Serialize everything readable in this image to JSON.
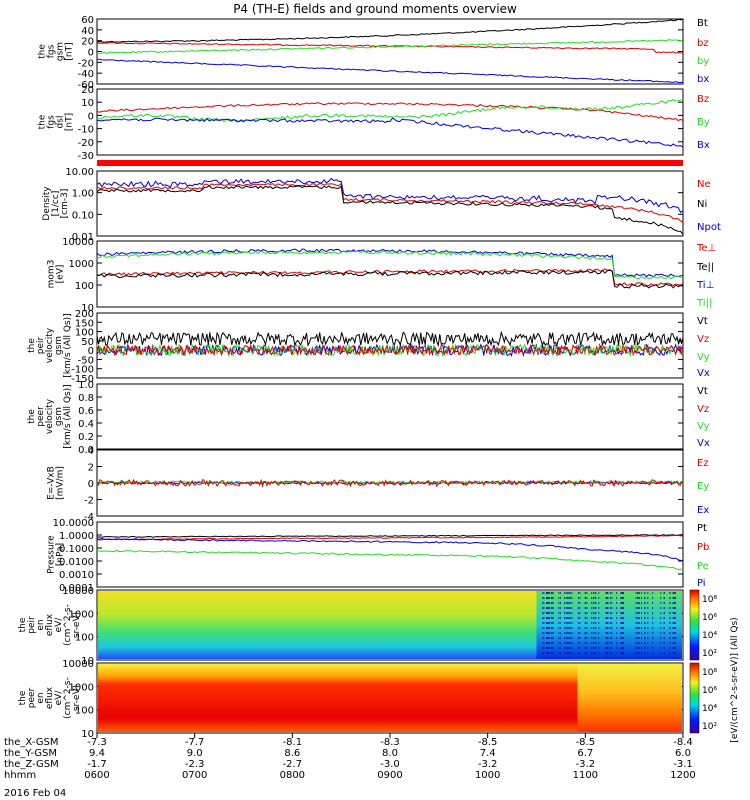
{
  "title": "P4 (TH-E) fields and ground moments overview",
  "date": "2016 Feb 04",
  "colors": {
    "black": "#000000",
    "red": "#e00000",
    "green": "#22dd22",
    "blue": "#0000dd",
    "bar": "#ff0000"
  },
  "panels": [
    {
      "id": "fgs-gsm",
      "ylabel": [
        "the",
        "fgs",
        "gsm",
        "[nT]"
      ],
      "ticks": [
        "60",
        "40",
        "20",
        "0",
        "-20",
        "-40",
        "-60"
      ],
      "legend": [
        {
          "label": "Bt",
          "color": "black"
        },
        {
          "label": "bz",
          "color": "red"
        },
        {
          "label": "by",
          "color": "green"
        },
        {
          "label": "bx",
          "color": "blue"
        }
      ]
    },
    {
      "id": "fgs-dsl",
      "ylabel": [
        "the",
        "fgs",
        "dsl",
        "[nT]"
      ],
      "ticks": [
        "20",
        "10",
        "0",
        "-10",
        "-20",
        "-30"
      ],
      "legend": [
        {
          "label": "Bz",
          "color": "red"
        },
        {
          "label": "By",
          "color": "green"
        },
        {
          "label": "Bx",
          "color": "blue"
        }
      ]
    },
    {
      "id": "density",
      "ylabel": [
        "Density",
        "[1/cc]",
        "[cm-3]"
      ],
      "ticks": [
        "10.00",
        "1.00",
        "0.10",
        "0.01"
      ],
      "legend": [
        {
          "label": "Ne",
          "color": "red"
        },
        {
          "label": "Ni",
          "color": "black"
        },
        {
          "label": "Npot",
          "color": "blue"
        }
      ]
    },
    {
      "id": "temp",
      "ylabel": [
        "mom3",
        "[eV]"
      ],
      "ticks": [
        "10000",
        "1000",
        "100",
        "10"
      ],
      "legend": [
        {
          "label": "Te⊥",
          "color": "red"
        },
        {
          "label": "Te||",
          "color": "black"
        },
        {
          "label": "Ti⊥",
          "color": "blue"
        },
        {
          "label": "Ti||",
          "color": "green"
        }
      ]
    },
    {
      "id": "peir-vel",
      "ylabel": [
        "the",
        "peir",
        "velocity",
        "gsm",
        "[km/s (All Qs)]"
      ],
      "ticks": [
        "200",
        "150",
        "100",
        "50",
        "0",
        "-50",
        "-100",
        "-150"
      ],
      "legend": [
        {
          "label": "Vt",
          "color": "black"
        },
        {
          "label": "Vz",
          "color": "red"
        },
        {
          "label": "Vy",
          "color": "green"
        },
        {
          "label": "Vx",
          "color": "blue"
        }
      ]
    },
    {
      "id": "peer-vel",
      "ylabel": [
        "the",
        "peer",
        "velocity",
        "gsm",
        "[km/s (All Qs)]"
      ],
      "ticks": [
        "1.0",
        "0.8",
        "0.6",
        "0.4",
        "0.2",
        "0.0"
      ],
      "legend": [
        {
          "label": "Vt",
          "color": "black"
        },
        {
          "label": "Vz",
          "color": "red"
        },
        {
          "label": "Vy",
          "color": "green"
        },
        {
          "label": "Vx",
          "color": "blue"
        }
      ]
    },
    {
      "id": "efield",
      "ylabel": [
        "E=-VxB",
        "[mV/m]"
      ],
      "ticks": [
        "4",
        "2",
        "0",
        "-2",
        "-4"
      ],
      "legend": [
        {
          "label": "Ez",
          "color": "red"
        },
        {
          "label": "Ey",
          "color": "green"
        },
        {
          "label": "Ex",
          "color": "blue"
        }
      ]
    },
    {
      "id": "pressure",
      "ylabel": [
        "Pressure",
        "[nPa]"
      ],
      "ticks": [
        "10.0000",
        "1.0000",
        "0.1000",
        "0.0100",
        "0.0010",
        "0.0001"
      ],
      "legend": [
        {
          "label": "Pt",
          "color": "black"
        },
        {
          "label": "Pb",
          "color": "red"
        },
        {
          "label": "Pe",
          "color": "green"
        },
        {
          "label": "Pi",
          "color": "blue"
        }
      ]
    },
    {
      "id": "peir-eflux",
      "ylabel": [
        "the",
        "peir",
        "en",
        "eflux",
        "eV/",
        "(cm^2-s-",
        "sr-eV)"
      ],
      "ticks": [
        "10000",
        "1000",
        "100",
        "10"
      ],
      "legend": []
    },
    {
      "id": "peer-eflux",
      "ylabel": [
        "the",
        "peer",
        "en",
        "eflux",
        "eV/",
        "(cm^2-s-",
        "sr-eV)"
      ],
      "ticks": [
        "10000",
        "1000",
        "100",
        "10"
      ],
      "legend": []
    }
  ],
  "colorbar": {
    "label": "[eV/(cm^2-s-sr-eV)] (All Qs)",
    "ion_ticks": [
      "10⁸",
      "10⁶",
      "10⁴",
      "10²"
    ],
    "electron_ticks": [
      "10⁸",
      "10⁶",
      "10⁴",
      "10²"
    ]
  },
  "xaxis": {
    "row_labels": [
      "the_X-GSM",
      "the_Y-GSM",
      "the_Z-GSM",
      "hhmm"
    ],
    "columns": [
      {
        "x": "-7.3",
        "y": "9.4",
        "z": "-1.7",
        "t": "0600"
      },
      {
        "x": "-7.7",
        "y": "9.0",
        "z": "-2.3",
        "t": "0700"
      },
      {
        "x": "-8.1",
        "y": "8.6",
        "z": "-2.7",
        "t": "0800"
      },
      {
        "x": "-8.3",
        "y": "8.0",
        "z": "-3.0",
        "t": "0900"
      },
      {
        "x": "-8.5",
        "y": "7.4",
        "z": "-3.2",
        "t": "1000"
      },
      {
        "x": "-8.5",
        "y": "6.7",
        "z": "-3.2",
        "t": "1100"
      },
      {
        "x": "-8.4",
        "y": "6.0",
        "z": "-3.1",
        "t": "1200"
      }
    ]
  },
  "chart_data": {
    "type": "line",
    "title": "P4 (TH-E) fields and ground moments overview",
    "x_hours": [
      6,
      7,
      8,
      9,
      10,
      11,
      12
    ],
    "series": [
      {
        "name": "Bt",
        "panel": "fgs-gsm",
        "values": [
          18,
          22,
          28,
          35,
          42,
          52,
          58
        ]
      },
      {
        "name": "bz",
        "panel": "fgs-gsm",
        "values": [
          16,
          15,
          14,
          12,
          8,
          3,
          0
        ]
      },
      {
        "name": "by",
        "panel": "fgs-gsm",
        "values": [
          -3,
          -2,
          1,
          5,
          10,
          18,
          20
        ]
      },
      {
        "name": "bx",
        "panel": "fgs-gsm",
        "values": [
          -15,
          -20,
          -25,
          -30,
          -38,
          -48,
          -55
        ]
      },
      {
        "name": "Bz",
        "panel": "fgs-dsl",
        "values": [
          3,
          6,
          7,
          9,
          5,
          1,
          0
        ]
      },
      {
        "name": "By",
        "panel": "fgs-dsl",
        "values": [
          -2,
          -3,
          -4,
          0,
          5,
          8,
          10
        ]
      },
      {
        "name": "Bx",
        "panel": "fgs-dsl",
        "values": [
          -3,
          -5,
          -6,
          -5,
          -8,
          -15,
          -22
        ]
      },
      {
        "name": "Ne",
        "panel": "density",
        "values": [
          1.3,
          1.8,
          1.3,
          0.6,
          0.3,
          0.3,
          0.1
        ]
      },
      {
        "name": "Ni",
        "panel": "density",
        "values": [
          1.1,
          1.5,
          1.2,
          0.5,
          0.25,
          0.25,
          0.06
        ]
      },
      {
        "name": "Npot",
        "panel": "density",
        "values": [
          2.0,
          3.5,
          2.0,
          0.7,
          0.35,
          0.5,
          0.6
        ]
      },
      {
        "name": "Te⊥",
        "panel": "temp",
        "values": [
          250,
          300,
          320,
          400,
          500,
          400,
          120
        ]
      },
      {
        "name": "Te||",
        "panel": "temp",
        "values": [
          200,
          240,
          260,
          320,
          400,
          250,
          80
        ]
      },
      {
        "name": "Ti⊥",
        "panel": "temp",
        "values": [
          2200,
          2500,
          2500,
          3000,
          3500,
          2800,
          300
        ]
      },
      {
        "name": "Ti||",
        "panel": "temp",
        "values": [
          1900,
          2200,
          2200,
          2600,
          3000,
          2200,
          250
        ]
      },
      {
        "name": "Pt",
        "panel": "pressure",
        "values": [
          0.7,
          0.75,
          0.8,
          0.85,
          0.9,
          0.95,
          1.0
        ]
      },
      {
        "name": "Pb",
        "panel": "pressure",
        "values": [
          0.45,
          0.5,
          0.55,
          0.6,
          0.65,
          0.75,
          0.9
        ]
      },
      {
        "name": "Pe",
        "panel": "pressure",
        "values": [
          0.06,
          0.05,
          0.04,
          0.03,
          0.025,
          0.01,
          0.002
        ]
      },
      {
        "name": "Pi",
        "panel": "pressure",
        "values": [
          0.5,
          0.4,
          0.35,
          0.3,
          0.25,
          0.08,
          0.01
        ]
      }
    ]
  }
}
